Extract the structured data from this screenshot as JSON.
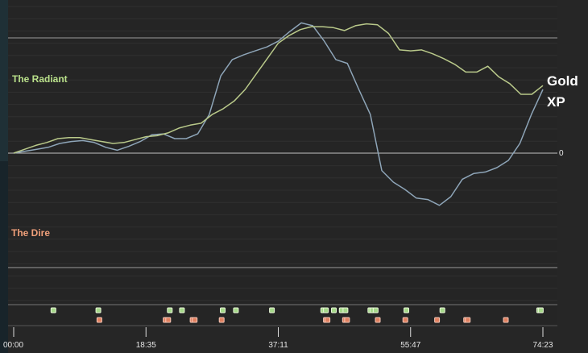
{
  "chart_data": {
    "type": "line",
    "x_ticks": [
      "00:00",
      "18:35",
      "37:11",
      "55:47",
      "74:23"
    ],
    "zero_label": "0",
    "teams": {
      "top": "The Radiant",
      "bottom": "The Dire"
    },
    "series": [
      {
        "name": "Gold",
        "color": "#b9c98a",
        "values": [
          0.0,
          0.04,
          0.08,
          0.11,
          0.15,
          0.16,
          0.16,
          0.14,
          0.12,
          0.1,
          0.11,
          0.14,
          0.17,
          0.18,
          0.21,
          0.26,
          0.29,
          0.31,
          0.4,
          0.46,
          0.54,
          0.66,
          0.82,
          0.98,
          1.14,
          1.22,
          1.28,
          1.31,
          1.31,
          1.3,
          1.27,
          1.32,
          1.34,
          1.33,
          1.24,
          1.07,
          1.06,
          1.07,
          1.03,
          0.98,
          0.92,
          0.84,
          0.84,
          0.9,
          0.79,
          0.72,
          0.61,
          0.61,
          0.7
        ]
      },
      {
        "name": "XP",
        "color": "#8ea5b8",
        "values": [
          0.0,
          0.02,
          0.04,
          0.06,
          0.1,
          0.12,
          0.13,
          0.11,
          0.06,
          0.03,
          0.07,
          0.12,
          0.19,
          0.2,
          0.15,
          0.15,
          0.2,
          0.4,
          0.8,
          0.97,
          1.02,
          1.06,
          1.1,
          1.16,
          1.26,
          1.35,
          1.32,
          1.16,
          0.97,
          0.93,
          0.66,
          0.4,
          -0.12,
          -0.2,
          -0.25,
          -0.31,
          -0.32,
          -0.36,
          -0.3,
          -0.18,
          -0.14,
          -0.13,
          -0.1,
          -0.05,
          0.1,
          0.4,
          0.66
        ]
      }
    ],
    "y_range": [
      -1.0,
      1.52
    ],
    "event_markers": {
      "radiant": [
        0.075,
        0.16,
        0.295,
        0.318,
        0.395,
        0.42,
        0.488,
        0.585,
        0.59,
        0.605,
        0.62,
        0.627,
        0.674,
        0.678,
        0.684,
        0.742,
        0.81,
        0.993,
        0.996
      ],
      "dire": [
        0.162,
        0.287,
        0.292,
        0.338,
        0.342,
        0.393,
        0.59,
        0.593,
        0.626,
        0.63,
        0.688,
        0.74,
        0.8,
        0.855,
        0.858,
        0.93
      ]
    },
    "grid": true
  }
}
